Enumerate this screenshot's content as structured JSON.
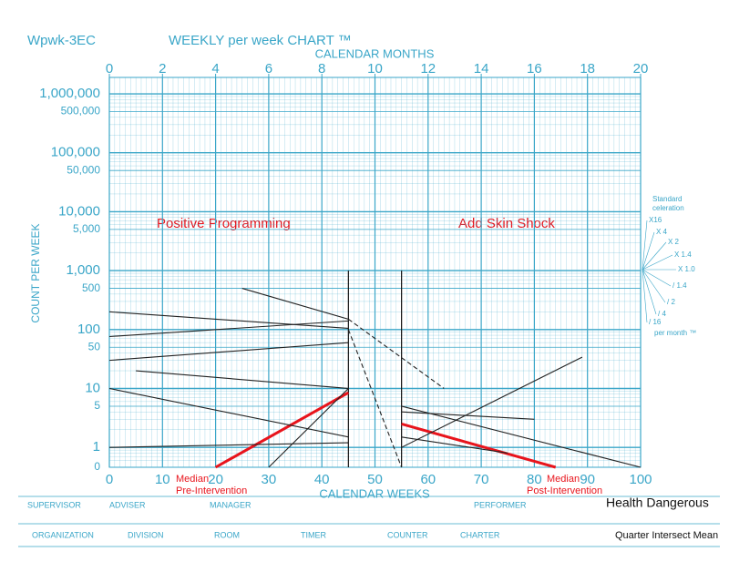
{
  "chart_data": {
    "type": "line",
    "title": "WEEKLY per week CHART ™",
    "chart_code": "Wpwk-3EC",
    "x_label": "CALENDAR WEEKS",
    "x2_label": "CALENDAR MONTHS",
    "y_label": "COUNT PER WEEK",
    "log_y": true,
    "grid": true,
    "grid_color": "#3aa6c8",
    "xlim": [
      0,
      100
    ],
    "xticks": [
      0,
      10,
      20,
      30,
      40,
      50,
      60,
      70,
      80,
      90,
      100
    ],
    "x2lim": [
      0,
      20
    ],
    "x2ticks": [
      0,
      2,
      4,
      6,
      8,
      10,
      12,
      14,
      16,
      18,
      20
    ],
    "ylim": [
      0.46,
      1900000
    ],
    "yticks": [
      0,
      1,
      5,
      10,
      50,
      100,
      500,
      {
        "value": 1000,
        "label": "1,000"
      },
      {
        "value": 5000,
        "label": "5,000"
      },
      {
        "value": 10000,
        "label": "10,000"
      },
      {
        "value": 50000,
        "label": "50,000"
      },
      {
        "value": 100000,
        "label": "100,000"
      },
      {
        "value": 500000,
        "label": "500,000"
      },
      {
        "value": 1000000,
        "label": "1,000,000"
      }
    ],
    "phase_lines": [
      45,
      55
    ],
    "series": [
      {
        "color": "#e8141c",
        "x": [
          20,
          45
        ],
        "values": [
          0,
          8.5
        ]
      },
      {
        "color": "#e8141c",
        "x": [
          55,
          84
        ],
        "values": [
          2.5,
          0
        ]
      },
      {
        "color": "#222222",
        "x": [
          0,
          45
        ],
        "values": [
          200,
          105
        ]
      },
      {
        "color": "#222222",
        "x": [
          0,
          45
        ],
        "values": [
          76,
          140
        ]
      },
      {
        "color": "#222222",
        "x": [
          25,
          45
        ],
        "values": [
          500,
          150
        ]
      },
      {
        "color": "#222222",
        "x": [
          0,
          45
        ],
        "values": [
          10,
          1.5
        ]
      },
      {
        "color": "#222222",
        "x": [
          5,
          45
        ],
        "values": [
          20,
          10
        ]
      },
      {
        "color": "#222222",
        "x": [
          0,
          45
        ],
        "values": [
          1,
          1.2
        ]
      },
      {
        "color": "#222222",
        "x": [
          30,
          45
        ],
        "values": [
          0,
          10
        ]
      },
      {
        "color": "#222222",
        "x": [
          0,
          45
        ],
        "values": [
          30,
          60
        ]
      },
      {
        "color": "#222222",
        "x": [
          45,
          63
        ],
        "values": [
          150,
          10
        ],
        "dashed": true
      },
      {
        "color": "#222222",
        "x": [
          45,
          55
        ],
        "values": [
          100,
          0
        ],
        "dashed": true
      },
      {
        "color": "#222222",
        "x": [
          55,
          100
        ],
        "values": [
          5,
          0
        ]
      },
      {
        "color": "#222222",
        "x": [
          55,
          89
        ],
        "values": [
          1,
          34
        ]
      },
      {
        "color": "#222222",
        "x": [
          55,
          80
        ],
        "values": [
          4,
          3
        ]
      },
      {
        "color": "#222222",
        "x": [
          55,
          75
        ],
        "values": [
          1.5,
          0.8
        ]
      }
    ],
    "annotations": [
      "Positive Programming",
      "Add Skin Shock",
      "Median",
      "Pre-Intervention",
      "Median",
      "Post-Intervention"
    ],
    "celeration_title": [
      "Standard",
      "celeration"
    ],
    "celeration_labels": [
      "X16",
      "X 4",
      "X 2",
      "X 1.4",
      "X 1.0",
      "/ 1.4",
      "/ 2",
      "/ 4",
      "/ 16"
    ],
    "celeration_unit": "per month ™",
    "footer_fields": [
      "SUPERVISOR",
      "ADVISER",
      "MANAGER",
      "PERFORMER",
      "ORGANIZATION",
      "DIVISION",
      "ROOM",
      "TIMER",
      "COUNTER",
      "CHARTER"
    ],
    "footer_notes": [
      "Health Dangerous",
      "Quarter Intersect Mean"
    ]
  }
}
